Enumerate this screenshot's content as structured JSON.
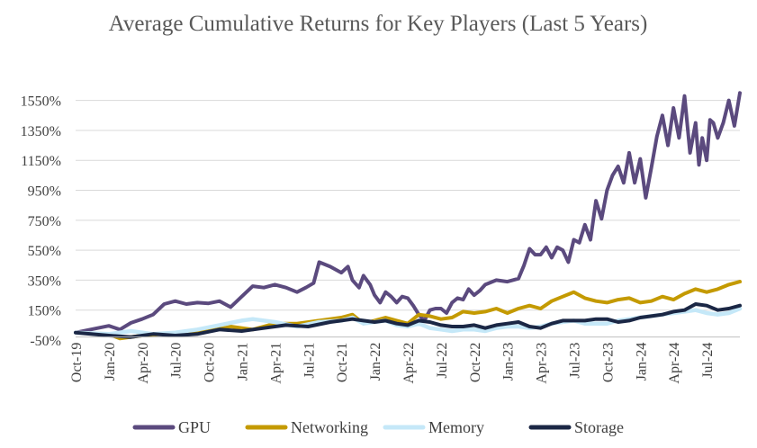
{
  "chart_data": {
    "type": "line",
    "title": "Average Cumulative Returns for Key Players (Last 5 Years)",
    "xlabel": "",
    "ylabel": "",
    "ylim": [
      -50,
      1650
    ],
    "yticks": [
      -50,
      150,
      350,
      550,
      750,
      950,
      1150,
      1350,
      1550
    ],
    "ytick_labels": [
      "-50%",
      "150%",
      "350%",
      "550%",
      "750%",
      "950%",
      "1150%",
      "1350%",
      "1550%"
    ],
    "xlim": [
      0,
      60
    ],
    "xticks": [
      0,
      3,
      6,
      9,
      12,
      15,
      18,
      21,
      24,
      27,
      30,
      33,
      36,
      39,
      42,
      45,
      48,
      51,
      54,
      57
    ],
    "xtick_labels": [
      "Oct-19",
      "Jan-20",
      "Apr-20",
      "Jul-20",
      "Oct-20",
      "Jan-21",
      "Apr-21",
      "Jul-21",
      "Oct-21",
      "Jan-22",
      "Apr-22",
      "Jul-22",
      "Oct-22",
      "Jan-23",
      "Apr-23",
      "Jul-23",
      "Oct-23",
      "Jan-24",
      "Apr-24",
      "Jul-24"
    ],
    "legend_position": "bottom",
    "series": [
      {
        "name": "GPU",
        "color": "#5b4a7e",
        "x": [
          0,
          1,
          2,
          3,
          4,
          5,
          6,
          7,
          8,
          9,
          10,
          11,
          12,
          13,
          14,
          15,
          16,
          17,
          18,
          19,
          20,
          20.8,
          21.5,
          22,
          23,
          24,
          24.6,
          25,
          25.6,
          26,
          26.6,
          27,
          27.5,
          28,
          28.5,
          29,
          29.5,
          30,
          30.5,
          31,
          31.5,
          32,
          32.5,
          33,
          33.5,
          34,
          34.5,
          35,
          35.5,
          36,
          36.5,
          37,
          38,
          39,
          40,
          40.5,
          41,
          41.5,
          42,
          42.5,
          43,
          43.5,
          44,
          44.5,
          45,
          45.5,
          46,
          46.5,
          47,
          47.5,
          48,
          48.5,
          49,
          49.5,
          50,
          50.5,
          51,
          51.5,
          52,
          52.5,
          53,
          53.5,
          54,
          54.5,
          55,
          55.5,
          56,
          56.3,
          56.6,
          57,
          57.3,
          57.6,
          58,
          58.5,
          59,
          59.5,
          60
        ],
        "values": [
          0,
          15,
          30,
          45,
          20,
          65,
          90,
          120,
          190,
          210,
          190,
          200,
          195,
          210,
          170,
          240,
          310,
          300,
          320,
          300,
          270,
          300,
          330,
          470,
          440,
          400,
          440,
          350,
          300,
          380,
          320,
          250,
          200,
          270,
          240,
          200,
          240,
          230,
          180,
          120,
          80,
          150,
          160,
          160,
          130,
          200,
          230,
          220,
          290,
          250,
          280,
          320,
          350,
          340,
          360,
          450,
          560,
          520,
          520,
          570,
          500,
          570,
          550,
          470,
          620,
          600,
          720,
          620,
          880,
          760,
          950,
          1050,
          1110,
          1000,
          1200,
          1000,
          1160,
          900,
          1100,
          1310,
          1450,
          1250,
          1500,
          1300,
          1580,
          1200,
          1400,
          1120,
          1300,
          1150,
          1420,
          1400,
          1300,
          1400,
          1550,
          1380,
          1600
        ]
      },
      {
        "name": "Networking",
        "color": "#c49a00",
        "x": [
          0,
          3,
          4,
          6,
          8,
          10,
          12,
          14,
          16,
          18,
          20,
          22,
          24,
          25,
          26,
          27,
          28,
          29,
          30,
          31,
          32,
          33,
          34,
          35,
          36,
          37,
          38,
          39,
          40,
          41,
          42,
          43,
          44,
          45,
          46,
          47,
          48,
          49,
          50,
          51,
          52,
          53,
          54,
          55,
          56,
          57,
          58,
          59,
          60
        ],
        "values": [
          0,
          -10,
          -40,
          -20,
          -10,
          0,
          10,
          40,
          20,
          60,
          60,
          80,
          100,
          120,
          60,
          80,
          100,
          80,
          60,
          120,
          110,
          90,
          100,
          140,
          130,
          140,
          160,
          130,
          160,
          180,
          160,
          210,
          240,
          270,
          230,
          210,
          200,
          220,
          230,
          200,
          210,
          240,
          220,
          260,
          290,
          270,
          290,
          320,
          340
        ]
      },
      {
        "name": "Memory",
        "color": "#c5e8f8",
        "x": [
          0,
          3,
          5,
          7,
          9,
          11,
          13,
          15,
          16,
          18,
          20,
          22,
          24,
          25,
          26,
          27,
          28,
          29,
          30,
          31,
          32,
          33,
          34,
          35,
          36,
          37,
          38,
          39,
          40,
          41,
          42,
          43,
          44,
          45,
          46,
          47,
          48,
          49,
          50,
          51,
          52,
          53,
          54,
          55,
          56,
          57,
          58,
          59,
          60
        ],
        "values": [
          0,
          -10,
          10,
          -10,
          0,
          20,
          50,
          80,
          90,
          70,
          40,
          70,
          80,
          100,
          60,
          70,
          80,
          50,
          40,
          60,
          30,
          20,
          10,
          20,
          20,
          10,
          30,
          40,
          40,
          30,
          40,
          60,
          70,
          80,
          60,
          60,
          60,
          80,
          90,
          100,
          110,
          120,
          130,
          140,
          150,
          130,
          120,
          130,
          160
        ]
      },
      {
        "name": "Storage",
        "color": "#1b2745",
        "x": [
          0,
          3,
          5,
          7,
          9,
          11,
          13,
          15,
          17,
          19,
          21,
          23,
          24,
          25,
          26,
          27,
          28,
          29,
          30,
          31,
          32,
          33,
          34,
          35,
          36,
          37,
          38,
          39,
          40,
          41,
          42,
          43,
          44,
          45,
          46,
          47,
          48,
          49,
          50,
          51,
          52,
          53,
          54,
          55,
          56,
          57,
          58,
          59,
          60
        ],
        "values": [
          0,
          -20,
          -30,
          -10,
          -20,
          -10,
          20,
          10,
          30,
          50,
          40,
          70,
          80,
          90,
          80,
          70,
          80,
          60,
          50,
          80,
          70,
          50,
          40,
          40,
          50,
          30,
          50,
          60,
          70,
          40,
          30,
          60,
          80,
          80,
          80,
          90,
          90,
          70,
          80,
          100,
          110,
          120,
          140,
          150,
          190,
          180,
          150,
          160,
          180
        ]
      }
    ]
  }
}
